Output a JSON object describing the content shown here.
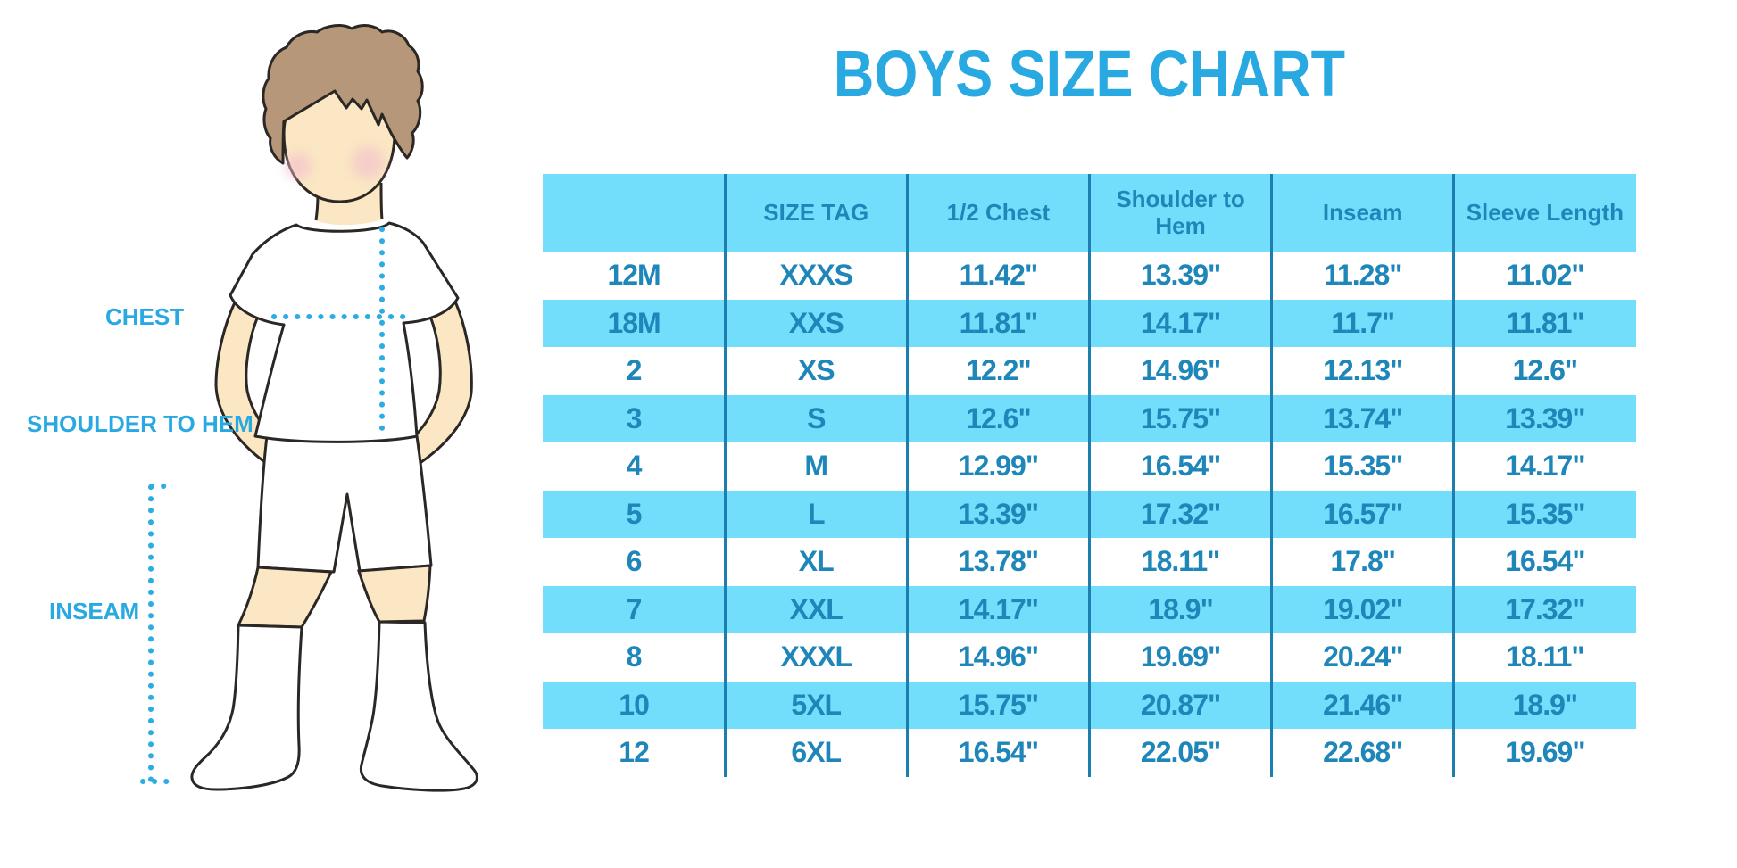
{
  "title": "BOYS SIZE CHART",
  "colors": {
    "accent_blue": "#29a9e1",
    "band_cyan": "#72defb",
    "table_text": "#1e86b8",
    "separator_line": "#1c7fb0",
    "dotted_line": "#2bace3",
    "skin": "#fbe7c3",
    "hair": "#b6977a",
    "outline": "#2a2724",
    "cheek": "#f3bfce"
  },
  "figure": {
    "labels": [
      "CHEST",
      "SHOULDER TO HEM",
      "INSEAM"
    ]
  },
  "table": {
    "headers": [
      "",
      "SIZE TAG",
      "1/2 Chest",
      "Shoulder to Hem",
      "Inseam",
      "Sleeve Length"
    ],
    "rows": [
      [
        "12M",
        "XXXS",
        "11.42\"",
        "13.39\"",
        "11.28\"",
        "11.02\""
      ],
      [
        "18M",
        "XXS",
        "11.81\"",
        "14.17\"",
        "11.7\"",
        "11.81\""
      ],
      [
        "2",
        "XS",
        "12.2\"",
        "14.96\"",
        "12.13\"",
        "12.6\""
      ],
      [
        "3",
        "S",
        "12.6\"",
        "15.75\"",
        "13.74\"",
        "13.39\""
      ],
      [
        "4",
        "M",
        "12.99\"",
        "16.54\"",
        "15.35\"",
        "14.17\""
      ],
      [
        "5",
        "L",
        "13.39\"",
        "17.32\"",
        "16.57\"",
        "15.35\""
      ],
      [
        "6",
        "XL",
        "13.78\"",
        "18.11\"",
        "17.8\"",
        "16.54\""
      ],
      [
        "7",
        "XXL",
        "14.17\"",
        "18.9\"",
        "19.02\"",
        "17.32\""
      ],
      [
        "8",
        "XXXL",
        "14.96\"",
        "19.69\"",
        "20.24\"",
        "18.11\""
      ],
      [
        "10",
        "5XL",
        "15.75\"",
        "20.87\"",
        "21.46\"",
        "18.9\""
      ],
      [
        "12",
        "6XL",
        "16.54\"",
        "22.05\"",
        "22.68\"",
        "19.69\""
      ]
    ]
  }
}
